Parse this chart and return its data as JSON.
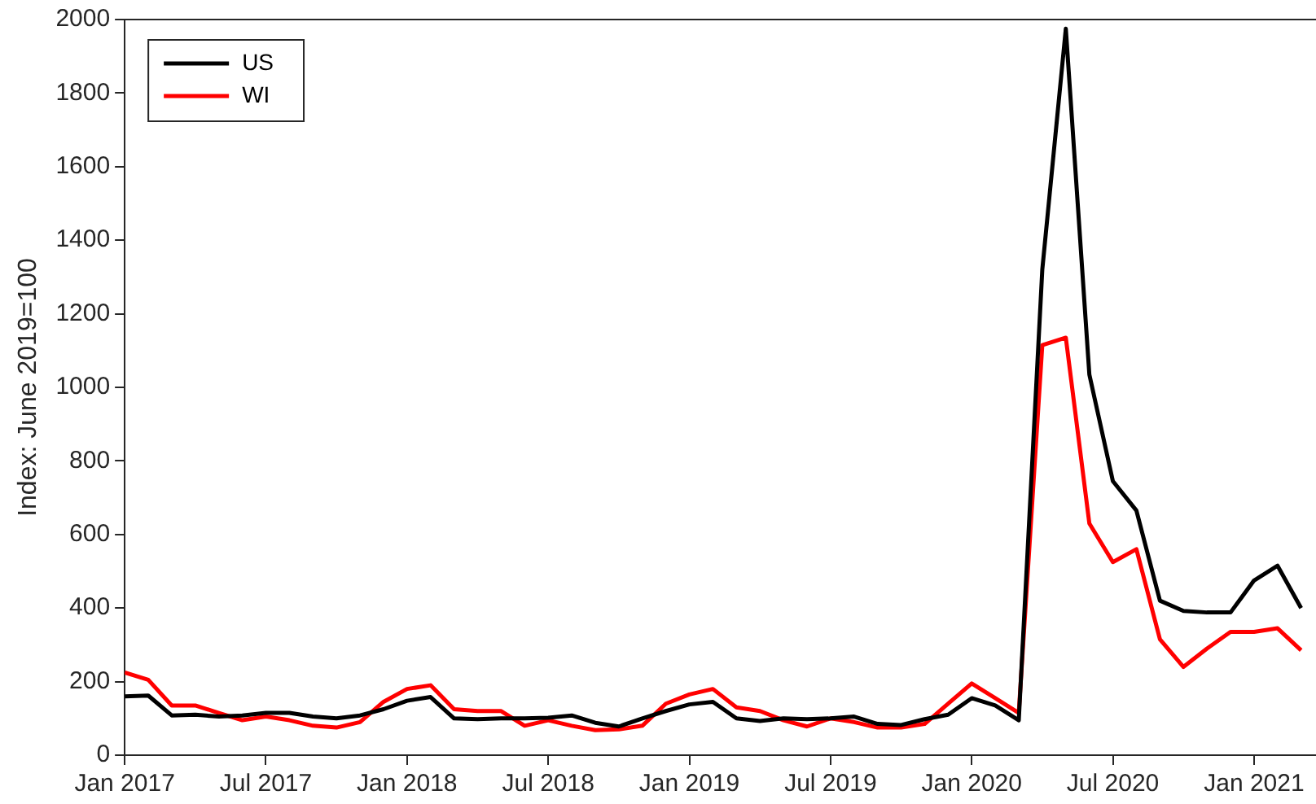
{
  "chart_data": {
    "type": "line",
    "ylabel": "Index: June 2019=100",
    "x": [
      "2017-01",
      "2017-02",
      "2017-03",
      "2017-04",
      "2017-05",
      "2017-06",
      "2017-07",
      "2017-08",
      "2017-09",
      "2017-10",
      "2017-11",
      "2017-12",
      "2018-01",
      "2018-02",
      "2018-03",
      "2018-04",
      "2018-05",
      "2018-06",
      "2018-07",
      "2018-08",
      "2018-09",
      "2018-10",
      "2018-11",
      "2018-12",
      "2019-01",
      "2019-02",
      "2019-03",
      "2019-04",
      "2019-05",
      "2019-06",
      "2019-07",
      "2019-08",
      "2019-09",
      "2019-10",
      "2019-11",
      "2019-12",
      "2020-01",
      "2020-02",
      "2020-03",
      "2020-04",
      "2020-05",
      "2020-06",
      "2020-07",
      "2020-08",
      "2020-09",
      "2020-10",
      "2020-11",
      "2020-12",
      "2021-01",
      "2021-02",
      "2021-03"
    ],
    "series": [
      {
        "name": "US",
        "color": "#000000",
        "values": [
          160,
          162,
          108,
          110,
          105,
          108,
          115,
          115,
          105,
          100,
          108,
          125,
          148,
          158,
          100,
          98,
          100,
          100,
          102,
          108,
          88,
          78,
          100,
          120,
          138,
          145,
          100,
          93,
          100,
          98,
          100,
          105,
          85,
          82,
          98,
          110,
          155,
          135,
          95,
          1320,
          1975,
          1035,
          745,
          665,
          420,
          392,
          388,
          388,
          475,
          515,
          400
        ]
      },
      {
        "name": "WI",
        "color": "#ff0000",
        "values": [
          225,
          205,
          135,
          135,
          115,
          95,
          105,
          95,
          80,
          75,
          90,
          145,
          180,
          190,
          125,
          120,
          120,
          80,
          95,
          80,
          68,
          70,
          80,
          140,
          165,
          180,
          130,
          120,
          95,
          78,
          100,
          90,
          75,
          75,
          85,
          140,
          195,
          155,
          115,
          1115,
          1135,
          630,
          525,
          560,
          315,
          240,
          290,
          335,
          335,
          345,
          285
        ]
      }
    ],
    "xlim": [
      "2017-01",
      "2021-03-20"
    ],
    "xticks": [
      {
        "value": "2017-01",
        "label": "Jan 2017"
      },
      {
        "value": "2017-07",
        "label": "Jul 2017"
      },
      {
        "value": "2018-01",
        "label": "Jan 2018"
      },
      {
        "value": "2018-07",
        "label": "Jul 2018"
      },
      {
        "value": "2019-01",
        "label": "Jan 2019"
      },
      {
        "value": "2019-07",
        "label": "Jul 2019"
      },
      {
        "value": "2020-01",
        "label": "Jan 2020"
      },
      {
        "value": "2020-07",
        "label": "Jul 2020"
      },
      {
        "value": "2021-01",
        "label": "Jan 2021"
      }
    ],
    "ylim": [
      0,
      2000
    ],
    "yticks": [
      0,
      200,
      400,
      600,
      800,
      1000,
      1200,
      1400,
      1600,
      1800,
      2000
    ],
    "grid": false,
    "legend": "top left",
    "marker": "none",
    "line_style": "solid"
  }
}
